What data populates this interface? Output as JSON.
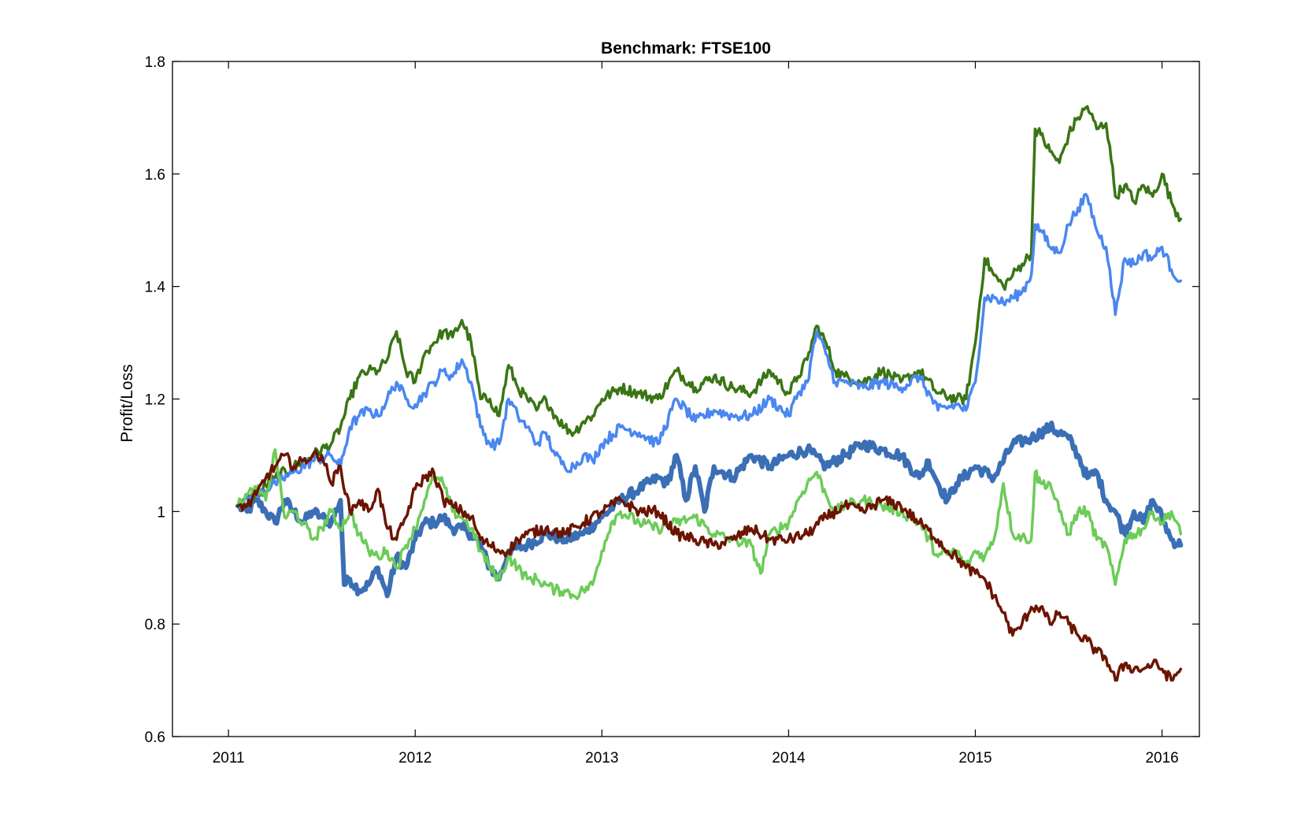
{
  "chart_data": {
    "type": "line",
    "title": "Benchmark: FTSE100",
    "xlabel": "",
    "ylabel": "Profit/Loss",
    "xlim": [
      2010.7,
      2016.2
    ],
    "ylim": [
      0.6,
      1.8
    ],
    "x_ticks": [
      "2011",
      "2012",
      "2013",
      "2014",
      "2015",
      "2016"
    ],
    "y_ticks": [
      "0.6",
      "0.8",
      "1",
      "1.2",
      "1.4",
      "1.6",
      "1.8"
    ],
    "grid": false,
    "legend": "none",
    "colors": [
      "#3a7515",
      "#4a87f0",
      "#3b6fb5",
      "#6ccc58",
      "#6b1500"
    ],
    "line_widths": [
      3.5,
      3.5,
      6,
      3.5,
      3.5
    ],
    "series": [
      {
        "x": [
          2011.05,
          2011.15,
          2011.25,
          2011.35,
          2011.45,
          2011.55,
          2011.6,
          2011.65,
          2011.7,
          2011.75,
          2011.8,
          2011.85,
          2011.9,
          2011.95,
          2012.0,
          2012.05,
          2012.1,
          2012.15,
          2012.2,
          2012.25,
          2012.3,
          2012.35,
          2012.4,
          2012.45,
          2012.5,
          2012.55,
          2012.6,
          2012.65,
          2012.7,
          2012.75,
          2012.8,
          2012.85,
          2012.9,
          2012.95,
          2013.0,
          2013.1,
          2013.2,
          2013.3,
          2013.4,
          2013.5,
          2013.6,
          2013.7,
          2013.8,
          2013.9,
          2014.0,
          2014.05,
          2014.1,
          2014.15,
          2014.2,
          2014.25,
          2014.3,
          2014.4,
          2014.5,
          2014.6,
          2014.7,
          2014.8,
          2014.9,
          2014.95,
          2015.0,
          2015.05,
          2015.1,
          2015.15,
          2015.2,
          2015.25,
          2015.3,
          2015.32,
          2015.35,
          2015.4,
          2015.45,
          2015.5,
          2015.55,
          2015.6,
          2015.65,
          2015.7,
          2015.72,
          2015.75,
          2015.8,
          2015.85,
          2015.9,
          2015.95,
          2016.0,
          2016.05,
          2016.1
        ],
        "y": [
          1.01,
          1.03,
          1.06,
          1.08,
          1.1,
          1.12,
          1.15,
          1.2,
          1.24,
          1.25,
          1.25,
          1.27,
          1.32,
          1.25,
          1.23,
          1.28,
          1.3,
          1.32,
          1.31,
          1.34,
          1.3,
          1.2,
          1.2,
          1.17,
          1.26,
          1.22,
          1.2,
          1.18,
          1.2,
          1.17,
          1.15,
          1.14,
          1.16,
          1.17,
          1.2,
          1.22,
          1.21,
          1.2,
          1.25,
          1.22,
          1.24,
          1.22,
          1.21,
          1.25,
          1.21,
          1.24,
          1.27,
          1.33,
          1.3,
          1.25,
          1.24,
          1.23,
          1.25,
          1.23,
          1.25,
          1.21,
          1.2,
          1.2,
          1.3,
          1.45,
          1.42,
          1.4,
          1.42,
          1.44,
          1.46,
          1.68,
          1.67,
          1.64,
          1.62,
          1.67,
          1.7,
          1.72,
          1.68,
          1.69,
          1.65,
          1.56,
          1.58,
          1.55,
          1.58,
          1.56,
          1.6,
          1.55,
          1.52
        ]
      },
      {
        "x": [
          2011.05,
          2011.15,
          2011.25,
          2011.35,
          2011.45,
          2011.55,
          2011.6,
          2011.65,
          2011.7,
          2011.75,
          2011.8,
          2011.85,
          2011.9,
          2011.95,
          2012.0,
          2012.05,
          2012.1,
          2012.15,
          2012.2,
          2012.25,
          2012.3,
          2012.35,
          2012.4,
          2012.45,
          2012.5,
          2012.55,
          2012.6,
          2012.65,
          2012.7,
          2012.75,
          2012.8,
          2012.85,
          2012.9,
          2012.95,
          2013.0,
          2013.1,
          2013.2,
          2013.3,
          2013.4,
          2013.5,
          2013.6,
          2013.7,
          2013.8,
          2013.9,
          2014.0,
          2014.05,
          2014.1,
          2014.15,
          2014.2,
          2014.25,
          2014.3,
          2014.4,
          2014.5,
          2014.6,
          2014.7,
          2014.8,
          2014.9,
          2014.95,
          2015.0,
          2015.05,
          2015.1,
          2015.15,
          2015.2,
          2015.25,
          2015.3,
          2015.32,
          2015.35,
          2015.4,
          2015.45,
          2015.5,
          2015.55,
          2015.6,
          2015.65,
          2015.7,
          2015.72,
          2015.75,
          2015.8,
          2015.85,
          2015.9,
          2015.95,
          2016.0,
          2016.05,
          2016.1
        ],
        "y": [
          1.01,
          1.03,
          1.05,
          1.07,
          1.09,
          1.1,
          1.08,
          1.15,
          1.17,
          1.18,
          1.17,
          1.2,
          1.23,
          1.2,
          1.19,
          1.21,
          1.23,
          1.25,
          1.24,
          1.27,
          1.23,
          1.15,
          1.12,
          1.12,
          1.2,
          1.17,
          1.15,
          1.12,
          1.14,
          1.1,
          1.08,
          1.08,
          1.1,
          1.09,
          1.12,
          1.15,
          1.14,
          1.12,
          1.2,
          1.16,
          1.18,
          1.17,
          1.17,
          1.2,
          1.17,
          1.21,
          1.23,
          1.32,
          1.28,
          1.23,
          1.23,
          1.22,
          1.23,
          1.22,
          1.24,
          1.18,
          1.19,
          1.18,
          1.23,
          1.38,
          1.38,
          1.37,
          1.38,
          1.39,
          1.42,
          1.51,
          1.5,
          1.47,
          1.46,
          1.51,
          1.54,
          1.56,
          1.5,
          1.47,
          1.43,
          1.35,
          1.45,
          1.44,
          1.46,
          1.45,
          1.47,
          1.43,
          1.41
        ]
      },
      {
        "x": [
          2011.05,
          2011.1,
          2011.15,
          2011.2,
          2011.25,
          2011.3,
          2011.35,
          2011.4,
          2011.45,
          2011.5,
          2011.55,
          2011.6,
          2011.62,
          2011.65,
          2011.7,
          2011.75,
          2011.8,
          2011.85,
          2011.9,
          2011.95,
          2012.0,
          2012.05,
          2012.1,
          2012.15,
          2012.2,
          2012.25,
          2012.3,
          2012.35,
          2012.4,
          2012.45,
          2012.5,
          2012.6,
          2012.7,
          2012.8,
          2012.9,
          2013.0,
          2013.1,
          2013.2,
          2013.3,
          2013.35,
          2013.4,
          2013.45,
          2013.5,
          2013.55,
          2013.6,
          2013.7,
          2013.8,
          2013.9,
          2014.0,
          2014.1,
          2014.2,
          2014.3,
          2014.4,
          2014.5,
          2014.6,
          2014.7,
          2014.75,
          2014.8,
          2014.85,
          2014.9,
          2015.0,
          2015.1,
          2015.2,
          2015.3,
          2015.4,
          2015.5,
          2015.55,
          2015.6,
          2015.65,
          2015.7,
          2015.75,
          2015.8,
          2015.85,
          2015.9,
          2015.95,
          2016.0,
          2016.05,
          2016.1
        ],
        "y": [
          1.01,
          1.0,
          1.02,
          1.0,
          0.98,
          1.02,
          1.0,
          0.98,
          1.0,
          0.99,
          0.98,
          1.02,
          0.87,
          0.88,
          0.86,
          0.87,
          0.9,
          0.85,
          0.92,
          0.9,
          0.95,
          0.98,
          0.98,
          0.99,
          0.97,
          0.97,
          0.96,
          0.94,
          0.9,
          0.88,
          0.93,
          0.94,
          0.96,
          0.95,
          0.96,
          0.99,
          1.02,
          1.04,
          1.06,
          1.05,
          1.1,
          1.02,
          1.08,
          1.0,
          1.08,
          1.06,
          1.1,
          1.08,
          1.1,
          1.11,
          1.08,
          1.1,
          1.12,
          1.11,
          1.1,
          1.06,
          1.09,
          1.05,
          1.02,
          1.05,
          1.08,
          1.06,
          1.12,
          1.13,
          1.15,
          1.13,
          1.1,
          1.06,
          1.07,
          1.02,
          1.0,
          0.96,
          1.0,
          0.98,
          1.02,
          0.99,
          0.95,
          0.94
        ]
      },
      {
        "x": [
          2011.05,
          2011.1,
          2011.15,
          2011.2,
          2011.25,
          2011.3,
          2011.35,
          2011.4,
          2011.45,
          2011.5,
          2011.55,
          2011.6,
          2011.65,
          2011.7,
          2011.75,
          2011.8,
          2011.85,
          2011.9,
          2011.95,
          2012.0,
          2012.05,
          2012.1,
          2012.15,
          2012.2,
          2012.25,
          2012.3,
          2012.35,
          2012.4,
          2012.45,
          2012.5,
          2012.55,
          2012.6,
          2012.65,
          2012.7,
          2012.75,
          2012.8,
          2012.85,
          2012.9,
          2012.95,
          2013.0,
          2013.05,
          2013.1,
          2013.2,
          2013.3,
          2013.4,
          2013.5,
          2013.6,
          2013.7,
          2013.8,
          2013.85,
          2013.9,
          2014.0,
          2014.05,
          2014.1,
          2014.15,
          2014.2,
          2014.25,
          2014.3,
          2014.4,
          2014.5,
          2014.6,
          2014.7,
          2014.8,
          2014.9,
          2014.95,
          2015.0,
          2015.05,
          2015.1,
          2015.15,
          2015.2,
          2015.3,
          2015.32,
          2015.35,
          2015.4,
          2015.45,
          2015.5,
          2015.55,
          2015.6,
          2015.65,
          2015.7,
          2015.75,
          2015.8,
          2015.85,
          2015.9,
          2015.95,
          2016.0,
          2016.05,
          2016.1
        ],
        "y": [
          1.01,
          1.03,
          1.04,
          1.02,
          1.11,
          0.99,
          1.0,
          0.98,
          0.95,
          0.97,
          1.0,
          0.97,
          1.0,
          0.96,
          0.93,
          0.92,
          0.93,
          0.9,
          0.94,
          0.97,
          1.02,
          1.06,
          1.05,
          1.0,
          0.99,
          0.97,
          0.93,
          0.9,
          0.88,
          0.92,
          0.9,
          0.88,
          0.88,
          0.87,
          0.86,
          0.86,
          0.85,
          0.86,
          0.87,
          0.93,
          0.98,
          1.0,
          0.98,
          0.97,
          0.98,
          0.99,
          0.96,
          0.95,
          0.94,
          0.89,
          0.96,
          0.98,
          1.02,
          1.05,
          1.07,
          1.03,
          1.0,
          1.01,
          1.02,
          1.01,
          1.0,
          0.98,
          0.92,
          0.93,
          0.9,
          0.93,
          0.92,
          0.95,
          1.05,
          0.96,
          0.95,
          1.07,
          1.05,
          1.05,
          1.0,
          0.96,
          1.0,
          1.0,
          0.95,
          0.94,
          0.87,
          0.95,
          0.96,
          0.97,
          1.0,
          0.98,
          1.0,
          0.96
        ]
      },
      {
        "x": [
          2011.05,
          2011.1,
          2011.15,
          2011.2,
          2011.25,
          2011.3,
          2011.35,
          2011.4,
          2011.45,
          2011.5,
          2011.55,
          2011.6,
          2011.65,
          2011.7,
          2011.75,
          2011.8,
          2011.85,
          2011.9,
          2011.95,
          2012.0,
          2012.05,
          2012.1,
          2012.15,
          2012.2,
          2012.25,
          2012.3,
          2012.35,
          2012.4,
          2012.45,
          2012.5,
          2012.55,
          2012.6,
          2012.7,
          2012.8,
          2012.9,
          2013.0,
          2013.1,
          2013.2,
          2013.3,
          2013.4,
          2013.5,
          2013.6,
          2013.7,
          2013.8,
          2013.9,
          2014.0,
          2014.1,
          2014.2,
          2014.3,
          2014.4,
          2014.5,
          2014.6,
          2014.7,
          2014.8,
          2014.85,
          2014.9,
          2014.95,
          2015.0,
          2015.05,
          2015.1,
          2015.15,
          2015.2,
          2015.25,
          2015.3,
          2015.35,
          2015.4,
          2015.45,
          2015.5,
          2015.55,
          2015.6,
          2015.65,
          2015.7,
          2015.75,
          2015.8,
          2015.85,
          2015.9,
          2015.95,
          2016.0,
          2016.05,
          2016.1
        ],
        "y": [
          1.01,
          1.01,
          1.03,
          1.06,
          1.08,
          1.1,
          1.08,
          1.09,
          1.1,
          1.1,
          1.05,
          1.08,
          1.0,
          1.02,
          1.0,
          1.04,
          0.97,
          0.95,
          0.99,
          1.04,
          1.06,
          1.07,
          1.02,
          1.01,
          1.0,
          0.99,
          0.95,
          0.94,
          0.93,
          0.93,
          0.95,
          0.96,
          0.97,
          0.96,
          0.98,
          1.0,
          1.02,
          1.0,
          1.0,
          0.96,
          0.95,
          0.94,
          0.95,
          0.97,
          0.95,
          0.95,
          0.96,
          0.99,
          1.01,
          1.0,
          1.02,
          1.01,
          0.98,
          0.95,
          0.93,
          0.92,
          0.9,
          0.89,
          0.88,
          0.85,
          0.82,
          0.78,
          0.8,
          0.83,
          0.83,
          0.8,
          0.82,
          0.8,
          0.78,
          0.77,
          0.75,
          0.74,
          0.7,
          0.73,
          0.72,
          0.72,
          0.73,
          0.72,
          0.7,
          0.72
        ]
      }
    ]
  }
}
